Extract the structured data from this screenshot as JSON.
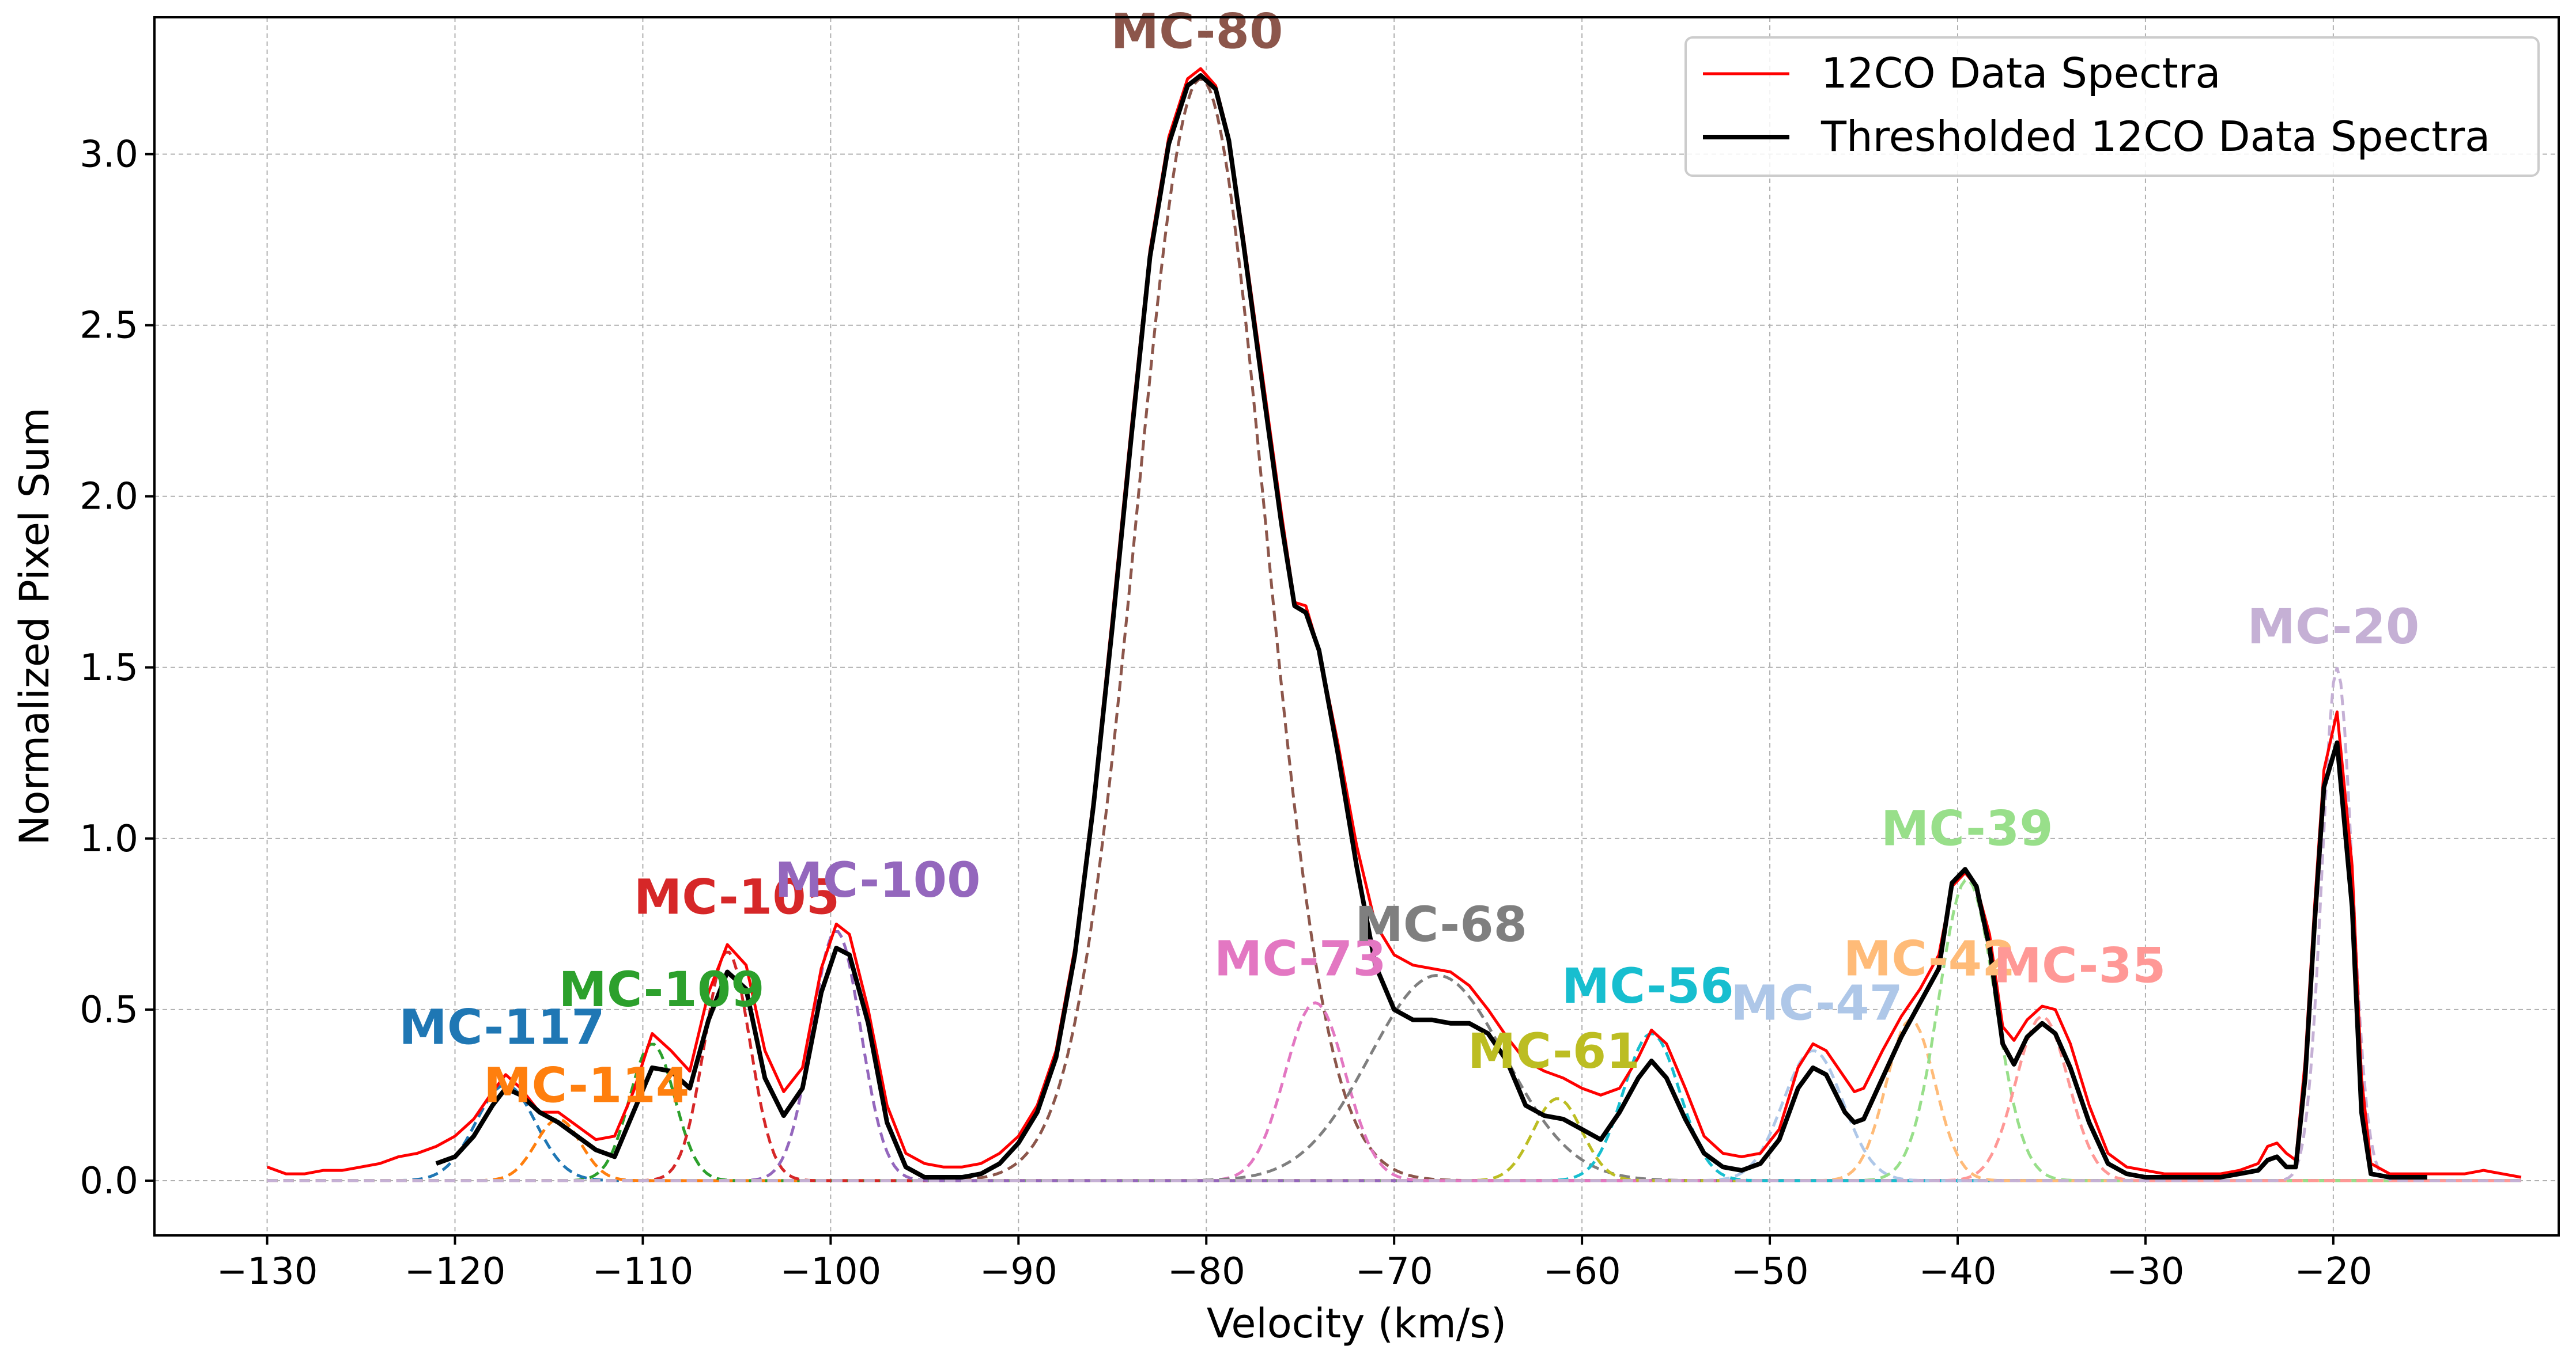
{
  "chart_data": {
    "type": "line",
    "title": "",
    "xlabel": "Velocity (km/s)",
    "ylabel": "Normalized Pixel Sum",
    "xlim": [
      -136,
      -8
    ],
    "ylim": [
      -0.16,
      3.4
    ],
    "xticks": [
      -130,
      -120,
      -110,
      -100,
      -90,
      -80,
      -70,
      -60,
      -50,
      -40,
      -30,
      -20
    ],
    "yticks": [
      0.0,
      0.5,
      1.0,
      1.5,
      2.0,
      2.5,
      3.0
    ],
    "xtick_labels": [
      "−130",
      "−120",
      "−110",
      "−100",
      "−90",
      "−80",
      "−70",
      "−60",
      "−50",
      "−40",
      "−30",
      "−20"
    ],
    "ytick_labels": [
      "0.0",
      "0.5",
      "1.0",
      "1.5",
      "2.0",
      "2.5",
      "3.0"
    ],
    "grid": true,
    "legend_position": "top-right",
    "series": [
      {
        "name": "12CO Data Spectra",
        "color": "#ff0000",
        "points": [
          [
            -130,
            0.04
          ],
          [
            -129,
            0.02
          ],
          [
            -128,
            0.02
          ],
          [
            -127,
            0.03
          ],
          [
            -126,
            0.03
          ],
          [
            -125,
            0.04
          ],
          [
            -124,
            0.05
          ],
          [
            -123,
            0.07
          ],
          [
            -122,
            0.08
          ],
          [
            -121,
            0.1
          ],
          [
            -120,
            0.13
          ],
          [
            -119,
            0.18
          ],
          [
            -118,
            0.26
          ],
          [
            -117.3,
            0.31
          ],
          [
            -116.5,
            0.27
          ],
          [
            -115.5,
            0.2
          ],
          [
            -114.5,
            0.2
          ],
          [
            -113.5,
            0.16
          ],
          [
            -112.5,
            0.12
          ],
          [
            -111.5,
            0.13
          ],
          [
            -110.5,
            0.26
          ],
          [
            -109.5,
            0.43
          ],
          [
            -108.5,
            0.38
          ],
          [
            -107.5,
            0.32
          ],
          [
            -106.5,
            0.55
          ],
          [
            -105.5,
            0.69
          ],
          [
            -104.5,
            0.63
          ],
          [
            -103.5,
            0.38
          ],
          [
            -102.5,
            0.26
          ],
          [
            -101.5,
            0.33
          ],
          [
            -100.5,
            0.62
          ],
          [
            -99.7,
            0.75
          ],
          [
            -99,
            0.72
          ],
          [
            -98,
            0.5
          ],
          [
            -97,
            0.22
          ],
          [
            -96,
            0.08
          ],
          [
            -95,
            0.05
          ],
          [
            -94,
            0.04
          ],
          [
            -93,
            0.04
          ],
          [
            -92,
            0.05
          ],
          [
            -91,
            0.08
          ],
          [
            -90,
            0.13
          ],
          [
            -89,
            0.22
          ],
          [
            -88,
            0.38
          ],
          [
            -87,
            0.68
          ],
          [
            -86,
            1.12
          ],
          [
            -85,
            1.65
          ],
          [
            -84,
            2.2
          ],
          [
            -83,
            2.72
          ],
          [
            -82,
            3.05
          ],
          [
            -81,
            3.22
          ],
          [
            -80.3,
            3.25
          ],
          [
            -79.5,
            3.2
          ],
          [
            -78.8,
            3.05
          ],
          [
            -78,
            2.75
          ],
          [
            -77,
            2.35
          ],
          [
            -76,
            1.95
          ],
          [
            -75.3,
            1.69
          ],
          [
            -74.7,
            1.68
          ],
          [
            -74,
            1.55
          ],
          [
            -73,
            1.28
          ],
          [
            -72,
            0.98
          ],
          [
            -71,
            0.75
          ],
          [
            -70,
            0.66
          ],
          [
            -69,
            0.63
          ],
          [
            -68,
            0.62
          ],
          [
            -67,
            0.61
          ],
          [
            -66,
            0.57
          ],
          [
            -65,
            0.5
          ],
          [
            -64,
            0.42
          ],
          [
            -63,
            0.35
          ],
          [
            -62,
            0.32
          ],
          [
            -61,
            0.3
          ],
          [
            -60,
            0.27
          ],
          [
            -59,
            0.25
          ],
          [
            -58,
            0.27
          ],
          [
            -57,
            0.36
          ],
          [
            -56.3,
            0.44
          ],
          [
            -55.5,
            0.4
          ],
          [
            -54.5,
            0.27
          ],
          [
            -53.5,
            0.13
          ],
          [
            -52.5,
            0.08
          ],
          [
            -51.5,
            0.07
          ],
          [
            -50.5,
            0.08
          ],
          [
            -49.5,
            0.15
          ],
          [
            -48.5,
            0.33
          ],
          [
            -47.7,
            0.4
          ],
          [
            -47,
            0.38
          ],
          [
            -46,
            0.3
          ],
          [
            -45.5,
            0.26
          ],
          [
            -45,
            0.27
          ],
          [
            -44,
            0.38
          ],
          [
            -43,
            0.48
          ],
          [
            -42,
            0.56
          ],
          [
            -41,
            0.66
          ],
          [
            -40.3,
            0.86
          ],
          [
            -39.6,
            0.9
          ],
          [
            -39,
            0.86
          ],
          [
            -38.3,
            0.72
          ],
          [
            -37.6,
            0.45
          ],
          [
            -37,
            0.41
          ],
          [
            -36.3,
            0.47
          ],
          [
            -35.5,
            0.51
          ],
          [
            -34.8,
            0.5
          ],
          [
            -34,
            0.4
          ],
          [
            -33,
            0.22
          ],
          [
            -32,
            0.08
          ],
          [
            -31,
            0.04
          ],
          [
            -30,
            0.03
          ],
          [
            -29,
            0.02
          ],
          [
            -28,
            0.02
          ],
          [
            -27,
            0.02
          ],
          [
            -26,
            0.02
          ],
          [
            -25,
            0.03
          ],
          [
            -24,
            0.05
          ],
          [
            -23.5,
            0.1
          ],
          [
            -23,
            0.11
          ],
          [
            -22.5,
            0.08
          ],
          [
            -22,
            0.06
          ],
          [
            -21.5,
            0.35
          ],
          [
            -21,
            0.8
          ],
          [
            -20.5,
            1.2
          ],
          [
            -19.8,
            1.37
          ],
          [
            -19,
            0.92
          ],
          [
            -18.5,
            0.3
          ],
          [
            -18,
            0.05
          ],
          [
            -17,
            0.02
          ],
          [
            -16,
            0.02
          ],
          [
            -15,
            0.02
          ],
          [
            -14,
            0.02
          ],
          [
            -13,
            0.02
          ],
          [
            -12,
            0.03
          ],
          [
            -11,
            0.02
          ],
          [
            -10,
            0.01
          ]
        ]
      },
      {
        "name": "Thresholded 12CO Data Spectra",
        "color": "#000000",
        "points": [
          [
            -121,
            0.05
          ],
          [
            -120,
            0.07
          ],
          [
            -119,
            0.13
          ],
          [
            -118,
            0.22
          ],
          [
            -117.3,
            0.27
          ],
          [
            -116.5,
            0.25
          ],
          [
            -115.5,
            0.2
          ],
          [
            -114.5,
            0.17
          ],
          [
            -113.5,
            0.13
          ],
          [
            -112.5,
            0.09
          ],
          [
            -111.5,
            0.07
          ],
          [
            -110.5,
            0.2
          ],
          [
            -109.5,
            0.33
          ],
          [
            -108.5,
            0.32
          ],
          [
            -107.5,
            0.27
          ],
          [
            -106.5,
            0.47
          ],
          [
            -105.5,
            0.61
          ],
          [
            -104.5,
            0.56
          ],
          [
            -103.5,
            0.3
          ],
          [
            -102.5,
            0.19
          ],
          [
            -101.5,
            0.27
          ],
          [
            -100.5,
            0.55
          ],
          [
            -99.7,
            0.68
          ],
          [
            -99,
            0.66
          ],
          [
            -98,
            0.46
          ],
          [
            -97,
            0.17
          ],
          [
            -96,
            0.04
          ],
          [
            -95,
            0.01
          ],
          [
            -94,
            0.01
          ],
          [
            -93,
            0.01
          ],
          [
            -92,
            0.02
          ],
          [
            -91,
            0.05
          ],
          [
            -90,
            0.11
          ],
          [
            -89,
            0.2
          ],
          [
            -88,
            0.36
          ],
          [
            -87,
            0.66
          ],
          [
            -86,
            1.1
          ],
          [
            -85,
            1.62
          ],
          [
            -84,
            2.17
          ],
          [
            -83,
            2.7
          ],
          [
            -82,
            3.03
          ],
          [
            -81,
            3.2
          ],
          [
            -80.3,
            3.23
          ],
          [
            -79.5,
            3.19
          ],
          [
            -78.8,
            3.04
          ],
          [
            -78,
            2.73
          ],
          [
            -77,
            2.32
          ],
          [
            -76,
            1.92
          ],
          [
            -75.3,
            1.68
          ],
          [
            -74.7,
            1.66
          ],
          [
            -74,
            1.55
          ],
          [
            -73,
            1.25
          ],
          [
            -72,
            0.92
          ],
          [
            -71,
            0.63
          ],
          [
            -70,
            0.5
          ],
          [
            -69,
            0.47
          ],
          [
            -68,
            0.47
          ],
          [
            -67,
            0.46
          ],
          [
            -66,
            0.46
          ],
          [
            -65,
            0.43
          ],
          [
            -64,
            0.35
          ],
          [
            -63,
            0.22
          ],
          [
            -62,
            0.19
          ],
          [
            -61,
            0.18
          ],
          [
            -60,
            0.15
          ],
          [
            -59,
            0.12
          ],
          [
            -58,
            0.2
          ],
          [
            -57,
            0.3
          ],
          [
            -56.3,
            0.35
          ],
          [
            -55.5,
            0.3
          ],
          [
            -54.5,
            0.18
          ],
          [
            -53.5,
            0.08
          ],
          [
            -52.5,
            0.04
          ],
          [
            -51.5,
            0.03
          ],
          [
            -50.5,
            0.05
          ],
          [
            -49.5,
            0.12
          ],
          [
            -48.5,
            0.27
          ],
          [
            -47.7,
            0.33
          ],
          [
            -47,
            0.31
          ],
          [
            -46,
            0.2
          ],
          [
            -45.5,
            0.17
          ],
          [
            -45,
            0.18
          ],
          [
            -44,
            0.3
          ],
          [
            -43,
            0.42
          ],
          [
            -42,
            0.52
          ],
          [
            -41,
            0.62
          ],
          [
            -40.3,
            0.87
          ],
          [
            -39.6,
            0.91
          ],
          [
            -39,
            0.86
          ],
          [
            -38.3,
            0.68
          ],
          [
            -37.6,
            0.4
          ],
          [
            -37,
            0.34
          ],
          [
            -36.3,
            0.42
          ],
          [
            -35.5,
            0.46
          ],
          [
            -34.8,
            0.43
          ],
          [
            -34,
            0.33
          ],
          [
            -33,
            0.17
          ],
          [
            -32,
            0.05
          ],
          [
            -31,
            0.02
          ],
          [
            -30,
            0.01
          ],
          [
            -29,
            0.01
          ],
          [
            -28,
            0.01
          ],
          [
            -27,
            0.01
          ],
          [
            -26,
            0.01
          ],
          [
            -25,
            0.02
          ],
          [
            -24,
            0.03
          ],
          [
            -23.5,
            0.06
          ],
          [
            -23,
            0.07
          ],
          [
            -22.5,
            0.04
          ],
          [
            -22,
            0.04
          ],
          [
            -21.5,
            0.3
          ],
          [
            -21,
            0.75
          ],
          [
            -20.5,
            1.15
          ],
          [
            -19.8,
            1.28
          ],
          [
            -19,
            0.8
          ],
          [
            -18.5,
            0.2
          ],
          [
            -18,
            0.02
          ],
          [
            -17,
            0.01
          ],
          [
            -16,
            0.01
          ],
          [
            -15,
            0.01
          ]
        ]
      }
    ],
    "components": [
      {
        "name": "MC-117",
        "center": -117.3,
        "amplitude": 0.28,
        "sigma": 1.6,
        "color": "#1f77b4",
        "label_pos": [
          -117.5,
          0.4
        ]
      },
      {
        "name": "MC-114",
        "center": -114.5,
        "amplitude": 0.18,
        "sigma": 1.2,
        "color": "#ff7f0e",
        "label_pos": [
          -113,
          0.23
        ]
      },
      {
        "name": "MC-109",
        "center": -109.5,
        "amplitude": 0.4,
        "sigma": 1.2,
        "color": "#2ca02c",
        "label_pos": [
          -109,
          0.51
        ]
      },
      {
        "name": "MC-105",
        "center": -105.5,
        "amplitude": 0.67,
        "sigma": 1.2,
        "color": "#d62728",
        "label_pos": [
          -105,
          0.78
        ]
      },
      {
        "name": "MC-100",
        "center": -99.7,
        "amplitude": 0.73,
        "sigma": 1.3,
        "color": "#9467bd",
        "label_pos": [
          -97.5,
          0.83
        ]
      },
      {
        "name": "MC-80",
        "center": -80.3,
        "amplitude": 3.22,
        "sigma": 3.4,
        "color": "#8c564b",
        "label_pos": [
          -80.5,
          3.31
        ]
      },
      {
        "name": "MC-73",
        "center": -74.2,
        "amplitude": 0.52,
        "sigma": 1.6,
        "color": "#e377c2",
        "label_pos": [
          -75,
          0.6
        ]
      },
      {
        "name": "MC-68",
        "center": -67.7,
        "amplitude": 0.6,
        "sigma": 3.6,
        "color": "#7f7f7f",
        "label_pos": [
          -67.5,
          0.7
        ]
      },
      {
        "name": "MC-61",
        "center": -61.3,
        "amplitude": 0.24,
        "sigma": 1.3,
        "color": "#bcbd22",
        "label_pos": [
          -61.5,
          0.33
        ]
      },
      {
        "name": "MC-56",
        "center": -56.3,
        "amplitude": 0.43,
        "sigma": 1.5,
        "color": "#17becf",
        "label_pos": [
          -56.5,
          0.52
        ]
      },
      {
        "name": "MC-47",
        "center": -47.7,
        "amplitude": 0.38,
        "sigma": 1.6,
        "color": "#aec7e8",
        "label_pos": [
          -47.5,
          0.47
        ]
      },
      {
        "name": "MC-42",
        "center": -42.5,
        "amplitude": 0.47,
        "sigma": 1.3,
        "color": "#ffbb78",
        "label_pos": [
          -41.5,
          0.6
        ]
      },
      {
        "name": "MC-39",
        "center": -39.5,
        "amplitude": 0.88,
        "sigma": 1.5,
        "color": "#98df8a",
        "label_pos": [
          -39.5,
          0.98
        ]
      },
      {
        "name": "MC-35",
        "center": -35.5,
        "amplitude": 0.48,
        "sigma": 1.4,
        "color": "#ff9896",
        "label_pos": [
          -33.5,
          0.58
        ]
      },
      {
        "name": "MC-20",
        "center": -19.8,
        "amplitude": 1.5,
        "sigma": 0.8,
        "color": "#c5b0d5",
        "label_pos": [
          -20,
          1.57
        ]
      }
    ]
  }
}
